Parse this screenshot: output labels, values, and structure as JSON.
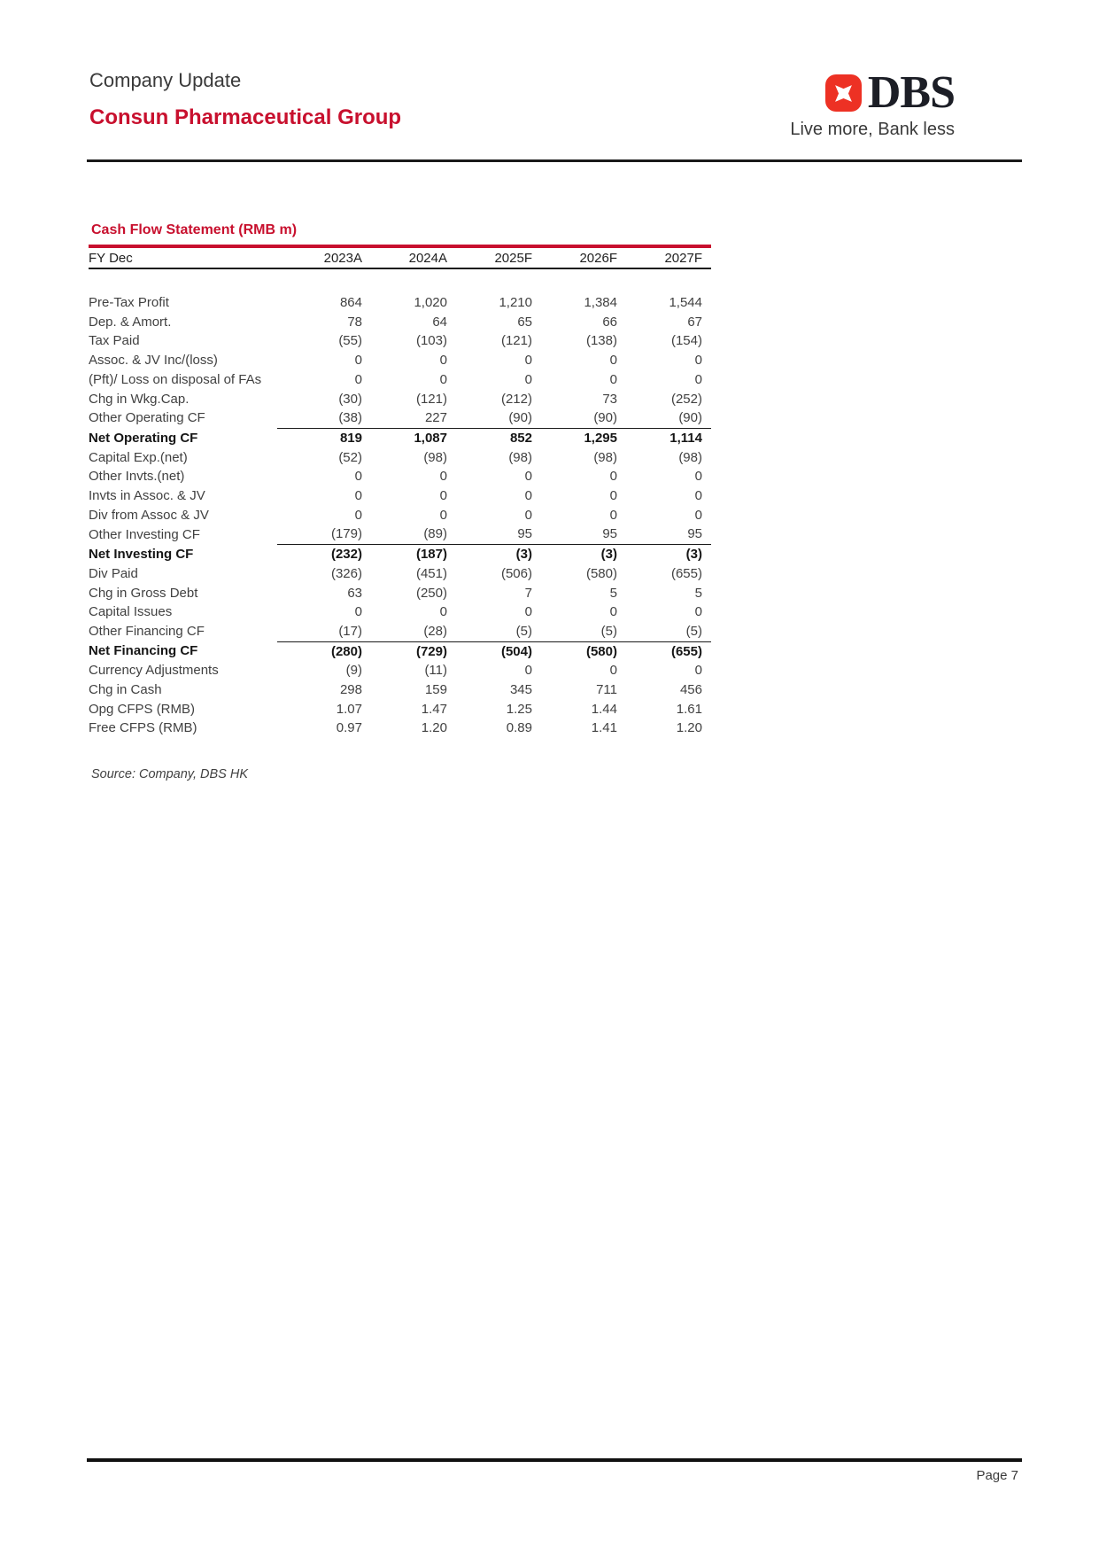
{
  "page": {
    "report_type": "Company Update",
    "company_name": "Consun Pharmaceutical Group",
    "page_number": "Page 7"
  },
  "brand": {
    "wordmark": "DBS",
    "tagline": "Live more, Bank less"
  },
  "table": {
    "title": "Cash Flow Statement (RMB m)",
    "columns": [
      "FY Dec",
      "2023A",
      "2024A",
      "2025F",
      "2026F",
      "2027F"
    ],
    "rows": [
      {
        "label": "Pre-Tax Profit",
        "values": [
          "864",
          "1,020",
          "1,210",
          "1,384",
          "1,544"
        ],
        "bold": false,
        "topline": false
      },
      {
        "label": "Dep. & Amort.",
        "values": [
          "78",
          "64",
          "65",
          "66",
          "67"
        ],
        "bold": false,
        "topline": false
      },
      {
        "label": "Tax Paid",
        "values": [
          "(55)",
          "(103)",
          "(121)",
          "(138)",
          "(154)"
        ],
        "bold": false,
        "topline": false
      },
      {
        "label": "Assoc. & JV Inc/(loss)",
        "values": [
          "0",
          "0",
          "0",
          "0",
          "0"
        ],
        "bold": false,
        "topline": false
      },
      {
        "label": "(Pft)/ Loss on disposal of FAs",
        "values": [
          "0",
          "0",
          "0",
          "0",
          "0"
        ],
        "bold": false,
        "topline": false
      },
      {
        "label": "Chg in Wkg.Cap.",
        "values": [
          "(30)",
          "(121)",
          "(212)",
          "73",
          "(252)"
        ],
        "bold": false,
        "topline": false
      },
      {
        "label": "Other Operating CF",
        "values": [
          "(38)",
          "227",
          "(90)",
          "(90)",
          "(90)"
        ],
        "bold": false,
        "topline": false
      },
      {
        "label": "Net Operating CF",
        "values": [
          "819",
          "1,087",
          "852",
          "1,295",
          "1,114"
        ],
        "bold": true,
        "topline": true
      },
      {
        "label": "Capital Exp.(net)",
        "values": [
          "(52)",
          "(98)",
          "(98)",
          "(98)",
          "(98)"
        ],
        "bold": false,
        "topline": false
      },
      {
        "label": "Other Invts.(net)",
        "values": [
          "0",
          "0",
          "0",
          "0",
          "0"
        ],
        "bold": false,
        "topline": false
      },
      {
        "label": "Invts in Assoc. & JV",
        "values": [
          "0",
          "0",
          "0",
          "0",
          "0"
        ],
        "bold": false,
        "topline": false
      },
      {
        "label": "Div from Assoc & JV",
        "values": [
          "0",
          "0",
          "0",
          "0",
          "0"
        ],
        "bold": false,
        "topline": false
      },
      {
        "label": "Other Investing CF",
        "values": [
          "(179)",
          "(89)",
          "95",
          "95",
          "95"
        ],
        "bold": false,
        "topline": false
      },
      {
        "label": "Net Investing CF",
        "values": [
          "(232)",
          "(187)",
          "(3)",
          "(3)",
          "(3)"
        ],
        "bold": true,
        "topline": true
      },
      {
        "label": "Div Paid",
        "values": [
          "(326)",
          "(451)",
          "(506)",
          "(580)",
          "(655)"
        ],
        "bold": false,
        "topline": false
      },
      {
        "label": "Chg in Gross Debt",
        "values": [
          "63",
          "(250)",
          "7",
          "5",
          "5"
        ],
        "bold": false,
        "topline": false
      },
      {
        "label": "Capital Issues",
        "values": [
          "0",
          "0",
          "0",
          "0",
          "0"
        ],
        "bold": false,
        "topline": false
      },
      {
        "label": "Other Financing CF",
        "values": [
          "(17)",
          "(28)",
          "(5)",
          "(5)",
          "(5)"
        ],
        "bold": false,
        "topline": false
      },
      {
        "label": "Net Financing CF",
        "values": [
          "(280)",
          "(729)",
          "(504)",
          "(580)",
          "(655)"
        ],
        "bold": true,
        "topline": true
      },
      {
        "label": "Currency Adjustments",
        "values": [
          "(9)",
          "(11)",
          "0",
          "0",
          "0"
        ],
        "bold": false,
        "topline": false
      },
      {
        "label": "Chg in Cash",
        "values": [
          "298",
          "159",
          "345",
          "711",
          "456"
        ],
        "bold": false,
        "topline": false
      },
      {
        "label": "Opg CFPS (RMB)",
        "values": [
          "1.07",
          "1.47",
          "1.25",
          "1.44",
          "1.61"
        ],
        "bold": false,
        "topline": false
      },
      {
        "label": "Free CFPS (RMB)",
        "values": [
          "0.97",
          "1.20",
          "0.89",
          "1.41",
          "1.20"
        ],
        "bold": false,
        "topline": false
      }
    ],
    "source": "Source: Company, DBS HK"
  },
  "colors": {
    "brand_red": "#c8102e",
    "logo_red": "#ed3124"
  }
}
